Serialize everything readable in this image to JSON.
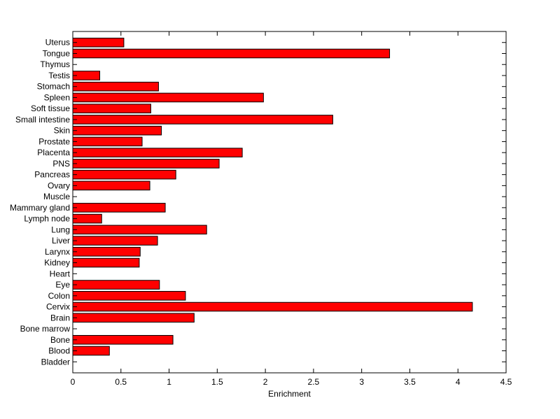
{
  "chart_data": {
    "type": "bar",
    "orientation": "horizontal",
    "title": "",
    "xlabel": "Enrichment",
    "ylabel": "",
    "xlim": [
      0,
      4.5
    ],
    "xticks": [
      0,
      0.5,
      1,
      1.5,
      2,
      2.5,
      3,
      3.5,
      4,
      4.5
    ],
    "xtick_labels": [
      "0",
      "0.5",
      "1",
      "1.5",
      "2",
      "2.5",
      "3",
      "3.5",
      "4",
      "4.5"
    ],
    "grid": false,
    "legend": "none",
    "bar_color": "#ff0000",
    "bar_edge_color": "#000000",
    "categories": [
      "Bladder",
      "Blood",
      "Bone",
      "Bone marrow",
      "Brain",
      "Cervix",
      "Colon",
      "Eye",
      "Heart",
      "Kidney",
      "Larynx",
      "Liver",
      "Lung",
      "Lymph node",
      "Mammary gland",
      "Muscle",
      "Ovary",
      "Pancreas",
      "PNS",
      "Placenta",
      "Prostate",
      "Skin",
      "Small intestine",
      "Soft tissue",
      "Spleen",
      "Stomach",
      "Testis",
      "Thymus",
      "Tongue",
      "Uterus"
    ],
    "values": [
      0,
      0.38,
      1.04,
      0,
      1.26,
      4.15,
      1.17,
      0.9,
      0,
      0.69,
      0.7,
      0.88,
      1.39,
      0.3,
      0.96,
      0,
      0.8,
      1.07,
      1.52,
      1.76,
      0.72,
      0.92,
      2.7,
      0.81,
      1.98,
      0.89,
      0.28,
      0,
      3.29,
      0.53
    ]
  }
}
